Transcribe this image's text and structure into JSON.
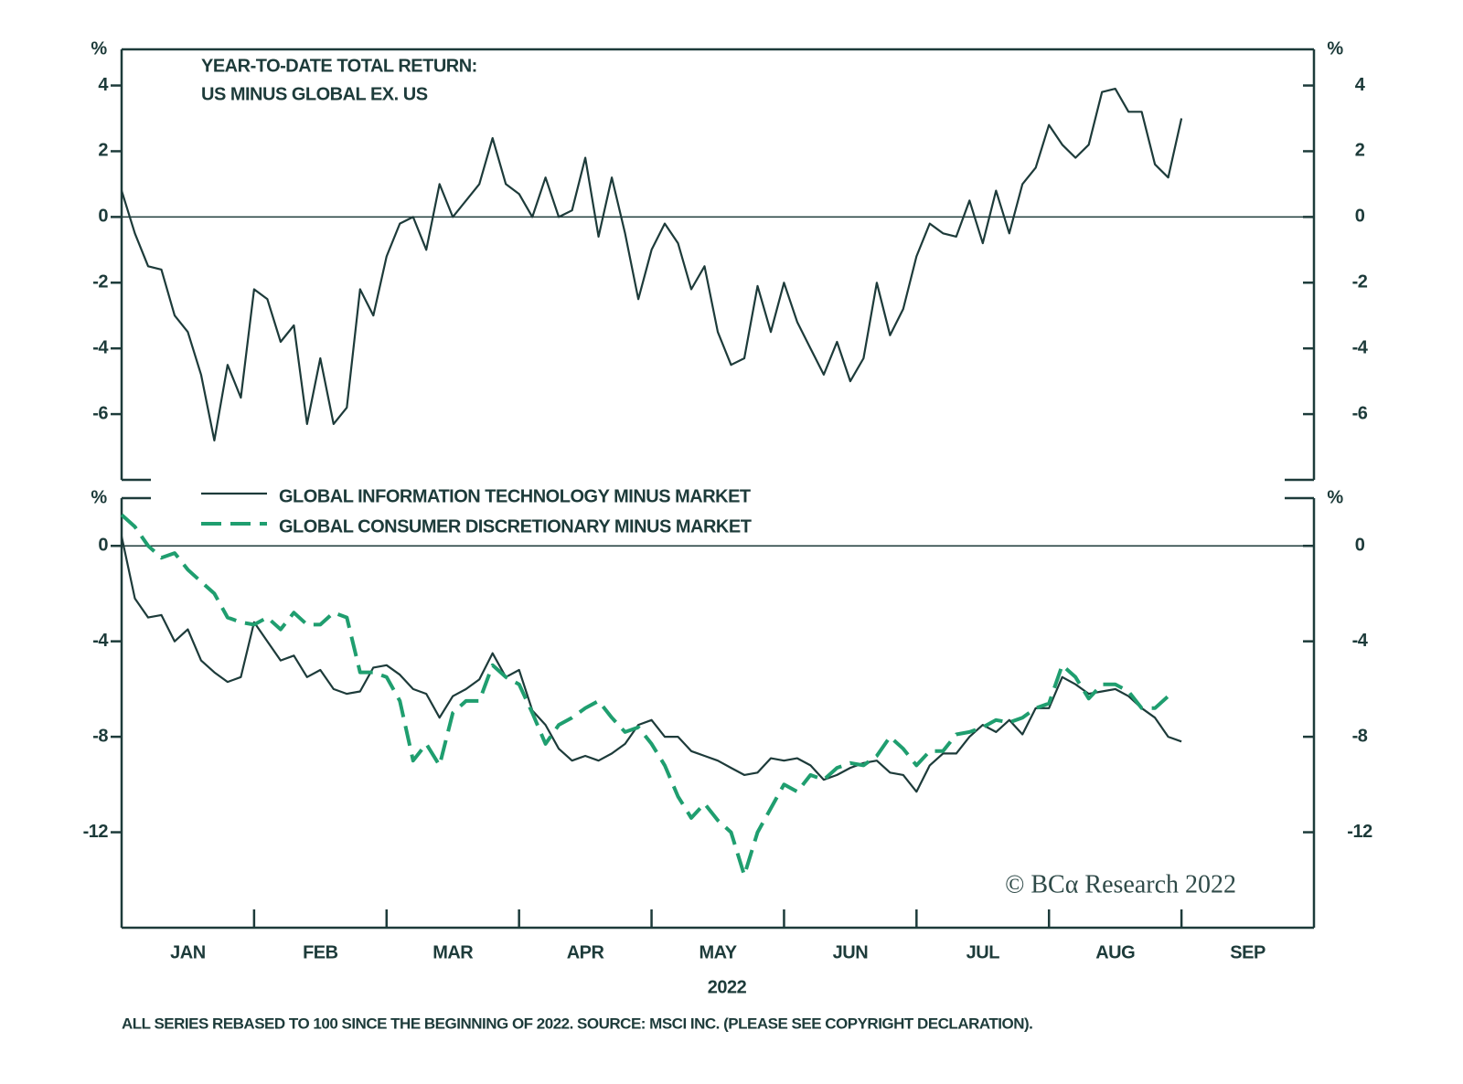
{
  "chart_data": [
    {
      "type": "line",
      "title": [
        "YEAR-TO-DATE TOTAL RETURN:",
        "US MINUS GLOBAL EX. US"
      ],
      "y_unit": "%",
      "xlim": [
        0,
        9
      ],
      "ylim": [
        -8,
        5.1
      ],
      "yticks": [
        -6,
        -4,
        -2,
        0,
        2,
        4
      ],
      "zero_line": true,
      "x": [
        0,
        0.1,
        0.2,
        0.3,
        0.4,
        0.5,
        0.6,
        0.7,
        0.8,
        0.9,
        1,
        1.1,
        1.2,
        1.3,
        1.4,
        1.5,
        1.6,
        1.7,
        1.8,
        1.9,
        2,
        2.1,
        2.2,
        2.3,
        2.4,
        2.5,
        2.6,
        2.7,
        2.8,
        2.9,
        3,
        3.1,
        3.2,
        3.3,
        3.4,
        3.5,
        3.6,
        3.7,
        3.8,
        3.9,
        4,
        4.1,
        4.2,
        4.3,
        4.4,
        4.5,
        4.6,
        4.7,
        4.8,
        4.9,
        5,
        5.1,
        5.2,
        5.3,
        5.4,
        5.5,
        5.6,
        5.7,
        5.8,
        5.9,
        6,
        6.1,
        6.2,
        6.3,
        6.4,
        6.5,
        6.6,
        6.7,
        6.8,
        6.9,
        7,
        7.1,
        7.2,
        7.3,
        7.4,
        7.5,
        7.6,
        7.7,
        7.8,
        7.9,
        8
      ],
      "series": [
        {
          "color": "#1d3b3a",
          "style": "solid",
          "values": [
            0.8,
            -0.5,
            -1.5,
            -1.6,
            -3,
            -3.5,
            -4.8,
            -6.8,
            -4.5,
            -5.5,
            -2.2,
            -2.5,
            -3.8,
            -3.3,
            -6.3,
            -4.3,
            -6.3,
            -5.8,
            -2.2,
            -3,
            -1.2,
            -0.2,
            0,
            -1,
            1,
            0,
            0.5,
            1,
            2.4,
            1,
            0.7,
            0,
            1.2,
            0,
            0.2,
            1.8,
            -0.6,
            1.2,
            -0.5,
            -2.5,
            -1,
            -0.2,
            -0.8,
            -2.2,
            -1.5,
            -3.5,
            -4.5,
            -4.3,
            -2.1,
            -3.5,
            -2,
            -3.2,
            -4,
            -4.8,
            -3.8,
            -5,
            -4.3,
            -2,
            -3.6,
            -2.8,
            -1.2,
            -0.2,
            -0.5,
            -0.6,
            0.5,
            -0.8,
            0.8,
            -0.5,
            1,
            1.5,
            2.8,
            2.2,
            1.8,
            2.2,
            3.8,
            3.9,
            3.2,
            3.2,
            1.6,
            1.2,
            3
          ]
        }
      ]
    },
    {
      "type": "line",
      "y_unit": "%",
      "xlabel": "2022",
      "xlim": [
        0,
        9
      ],
      "ylim": [
        -16,
        2
      ],
      "yticks": [
        -12,
        -8,
        -4,
        0
      ],
      "zero_line": true,
      "xticks": [
        {
          "value": 0.5,
          "label": "JAN"
        },
        {
          "value": 1.5,
          "label": "FEB"
        },
        {
          "value": 2.5,
          "label": "MAR"
        },
        {
          "value": 3.5,
          "label": "APR"
        },
        {
          "value": 4.5,
          "label": "MAY"
        },
        {
          "value": 5.5,
          "label": "JUN"
        },
        {
          "value": 6.5,
          "label": "JUL"
        },
        {
          "value": 7.5,
          "label": "AUG"
        },
        {
          "value": 8.5,
          "label": "SEP"
        }
      ],
      "x": [
        0,
        0.1,
        0.2,
        0.3,
        0.4,
        0.5,
        0.6,
        0.7,
        0.8,
        0.9,
        1,
        1.1,
        1.2,
        1.3,
        1.4,
        1.5,
        1.6,
        1.7,
        1.8,
        1.9,
        2,
        2.1,
        2.2,
        2.3,
        2.4,
        2.5,
        2.6,
        2.7,
        2.8,
        2.9,
        3,
        3.1,
        3.2,
        3.3,
        3.4,
        3.5,
        3.6,
        3.7,
        3.8,
        3.9,
        4,
        4.1,
        4.2,
        4.3,
        4.4,
        4.5,
        4.6,
        4.7,
        4.8,
        4.9,
        5,
        5.1,
        5.2,
        5.3,
        5.4,
        5.5,
        5.6,
        5.7,
        5.8,
        5.9,
        6,
        6.1,
        6.2,
        6.3,
        6.4,
        6.5,
        6.6,
        6.7,
        6.8,
        6.9,
        7,
        7.1,
        7.2,
        7.3,
        7.4,
        7.5,
        7.6,
        7.7,
        7.8,
        7.9,
        8
      ],
      "series": [
        {
          "name": "GLOBAL INFORMATION TECHNOLOGY MINUS MARKET",
          "color": "#1d3b3a",
          "style": "solid",
          "values": [
            0.4,
            -2.2,
            -3,
            -2.9,
            -4,
            -3.5,
            -4.8,
            -5.3,
            -5.7,
            -5.5,
            -3.2,
            -4,
            -4.8,
            -4.6,
            -5.5,
            -5.2,
            -6,
            -6.2,
            -6.1,
            -5.1,
            -5,
            -5.4,
            -6,
            -6.2,
            -7.2,
            -6.3,
            -6,
            -5.6,
            -4.5,
            -5.5,
            -5.2,
            -6.9,
            -7.5,
            -8.5,
            -9,
            -8.8,
            -9,
            -8.7,
            -8.3,
            -7.5,
            -7.3,
            -8,
            -8,
            -8.6,
            -8.8,
            -9,
            -9.3,
            -9.6,
            -9.5,
            -8.9,
            -9,
            -8.9,
            -9.2,
            -9.8,
            -9.6,
            -9.3,
            -9.1,
            -9,
            -9.5,
            -9.6,
            -10.3,
            -9.2,
            -8.7,
            -8.7,
            -8,
            -7.5,
            -7.8,
            -7.3,
            -7.9,
            -6.8,
            -6.8,
            -5.5,
            -5.8,
            -6.2,
            -6.1,
            -6,
            -6.3,
            -6.8,
            -7.2,
            -8,
            -8.2
          ]
        },
        {
          "name": "GLOBAL CONSUMER DISCRETIONARY MINUS MARKET",
          "color": "#1f9e6f",
          "style": "dashed",
          "values": [
            1.3,
            0.8,
            0,
            -0.5,
            -0.3,
            -1,
            -1.5,
            -2,
            -3,
            -3.2,
            -3.3,
            -3,
            -3.5,
            -2.8,
            -3.3,
            -3.3,
            -2.8,
            -3,
            -5.3,
            -5.3,
            -5.5,
            -6.5,
            -9,
            -8.3,
            -9.2,
            -7,
            -6.5,
            -6.5,
            -5,
            -5.5,
            -5.8,
            -7,
            -8.3,
            -7.5,
            -7.2,
            -6.8,
            -6.5,
            -7.2,
            -7.8,
            -7.6,
            -8.3,
            -9.2,
            -10.5,
            -11.4,
            -10.8,
            -11.5,
            -12,
            -13.8,
            -12,
            -11,
            -10,
            -10.3,
            -9.6,
            -9.8,
            -9.3,
            -9.1,
            -9.2,
            -8.8,
            -8,
            -8.5,
            -9.2,
            -8.6,
            -8.6,
            -7.9,
            -7.8,
            -7.6,
            -7.3,
            -7.4,
            -7.2,
            -6.8,
            -6.6,
            -5,
            -5.5,
            -6.4,
            -5.8,
            -5.8,
            -6.1,
            -6.8,
            -6.8,
            -6.3,
            null
          ]
        }
      ]
    }
  ],
  "watermark": "© BCα Research 2022",
  "footnote": "ALL SERIES REBASED TO 100 SINCE THE BEGINNING OF 2022. SOURCE: MSCI INC. (PLEASE SEE COPYRIGHT DECLARATION)."
}
